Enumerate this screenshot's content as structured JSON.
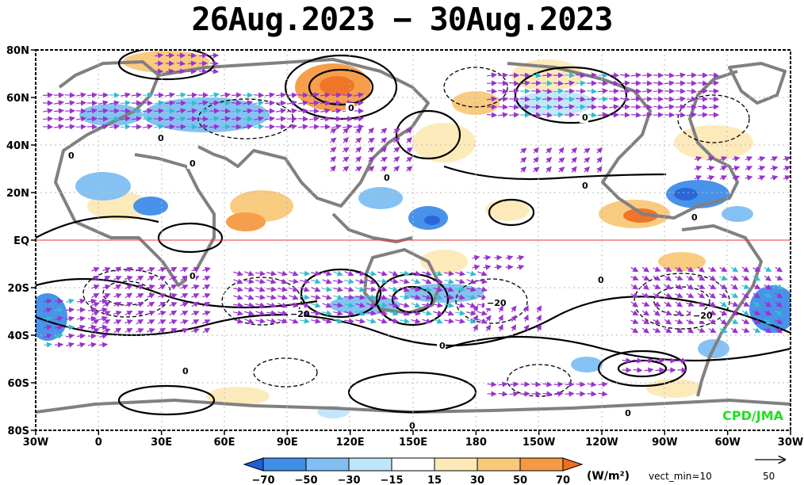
{
  "title": "26Aug.2023 − 30Aug.2023",
  "lat_labels": [
    "80N",
    "60N",
    "40N",
    "20N",
    "EQ",
    "20S",
    "40S",
    "60S",
    "80S"
  ],
  "lon_labels": [
    "30W",
    "0",
    "30E",
    "60E",
    "90E",
    "120E",
    "150E",
    "180",
    "150W",
    "120W",
    "90W",
    "60W",
    "30W"
  ],
  "colorbar": {
    "ticks": [
      "−70",
      "−50",
      "−30",
      "−15",
      "15",
      "30",
      "50",
      "70"
    ],
    "colors": [
      "#1e5fd8",
      "#3f8ee8",
      "#7fbff3",
      "#bfe6fb",
      "#ffffff",
      "#fde9b8",
      "#f9c97a",
      "#f59a44",
      "#ef6e1e"
    ],
    "unit": "(W/m²)",
    "vect_min": "vect_min=10",
    "ref_vector": "50"
  },
  "contour_labels": [
    "0",
    "0",
    "0",
    "0",
    "0",
    "0",
    "0",
    "0",
    "0",
    "0",
    "−20",
    "−20",
    "−20",
    "0",
    "0"
  ],
  "credit": "CPD/JMA",
  "colors": {
    "equator": "#ee3333",
    "vector": "#9933cc",
    "vector_strong": "#33cccc",
    "land": "#808080"
  }
}
